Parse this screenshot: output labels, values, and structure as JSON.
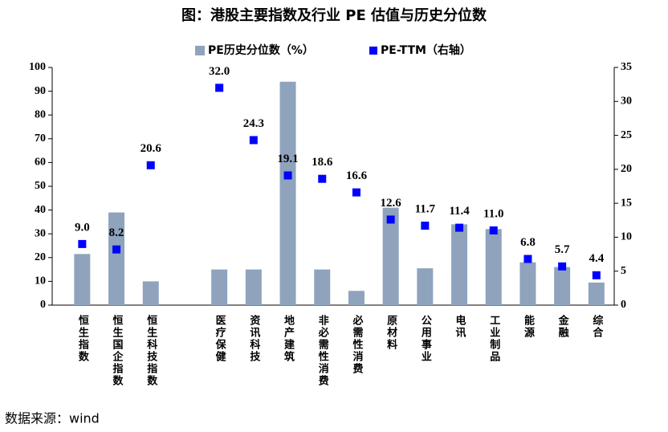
{
  "chart_data": {
    "type": "bar-scatter",
    "title": "图：港股主要指数及行业 PE 估值与历史分位数",
    "source": "数据来源：wind",
    "categories": [
      "恒生指数",
      "恒生国企指数",
      "恒生科技指数",
      null,
      "医疗保健",
      "资讯科技",
      "地产建筑",
      "非必需性消费",
      "必需性消费",
      "原材料",
      "公用事业",
      "电讯",
      "工业制品",
      "能源",
      "金融",
      "综合"
    ],
    "series": [
      {
        "name": "PE历史分位数（%）",
        "color": "#8fa3bd",
        "type": "bar",
        "values": [
          21.5,
          39,
          10,
          null,
          15,
          15,
          94,
          15,
          6,
          41,
          15.5,
          34,
          32,
          18,
          16,
          9.5
        ]
      },
      {
        "name": "PE-TTM（右轴）",
        "color": "#0000ff",
        "type": "scatter",
        "axis": "y2",
        "values": [
          9.0,
          8.2,
          20.6,
          null,
          32.0,
          24.3,
          19.1,
          18.6,
          16.6,
          12.6,
          11.7,
          11.4,
          11.0,
          6.8,
          5.7,
          4.4
        ],
        "value_labels": [
          "9.0",
          "8.2",
          "20.6",
          null,
          "32.0",
          "24.3",
          "19.1",
          "18.6",
          "16.6",
          "12.6",
          "11.7",
          "11.4",
          "11.0",
          "6.8",
          "5.7",
          "4.4"
        ]
      }
    ],
    "ylim": [
      0,
      100
    ],
    "yticks": [
      0,
      10,
      20,
      30,
      40,
      50,
      60,
      70,
      80,
      90,
      100
    ],
    "y2lim": [
      0,
      35
    ],
    "y2ticks": [
      0,
      5,
      10,
      15,
      20,
      25,
      30,
      35
    ],
    "legend": "top"
  }
}
